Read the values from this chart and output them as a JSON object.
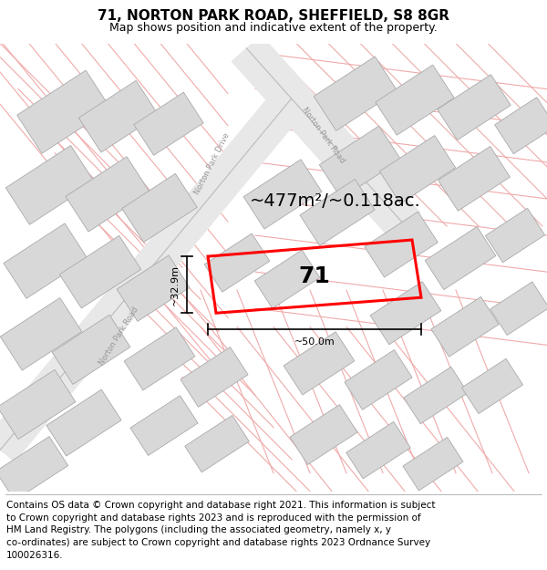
{
  "title_line1": "71, NORTON PARK ROAD, SHEFFIELD, S8 8GR",
  "title_line2": "Map shows position and indicative extent of the property.",
  "footer_text": "Contains OS data © Crown copyright and database right 2021. This information is subject\nto Crown copyright and database rights 2023 and is reproduced with the permission of\nHM Land Registry. The polygons (including the associated geometry, namely x, y\nco-ordinates) are subject to Crown copyright and database rights 2023 Ordnance Survey\n100026316.",
  "area_label": "~477m²/~0.118ac.",
  "plot_number": "71",
  "width_label": "~50.0m",
  "height_label": "~32.9m",
  "bg_color": "#ffffff",
  "map_bg": "#ffffff",
  "property_color": "#ff0000",
  "building_fill": "#d8d8d8",
  "building_edge": "#aaaaaa",
  "road_fill": "#ffffff",
  "road_edge": "#bbbbbb",
  "faint_line": "#f0aaaa",
  "street_label_color": "#999999",
  "title_fontsize": 11,
  "subtitle_fontsize": 9,
  "footer_fontsize": 7.5,
  "area_fontsize": 14,
  "number_fontsize": 18,
  "dim_fontsize": 8,
  "street_fontsize": 6
}
